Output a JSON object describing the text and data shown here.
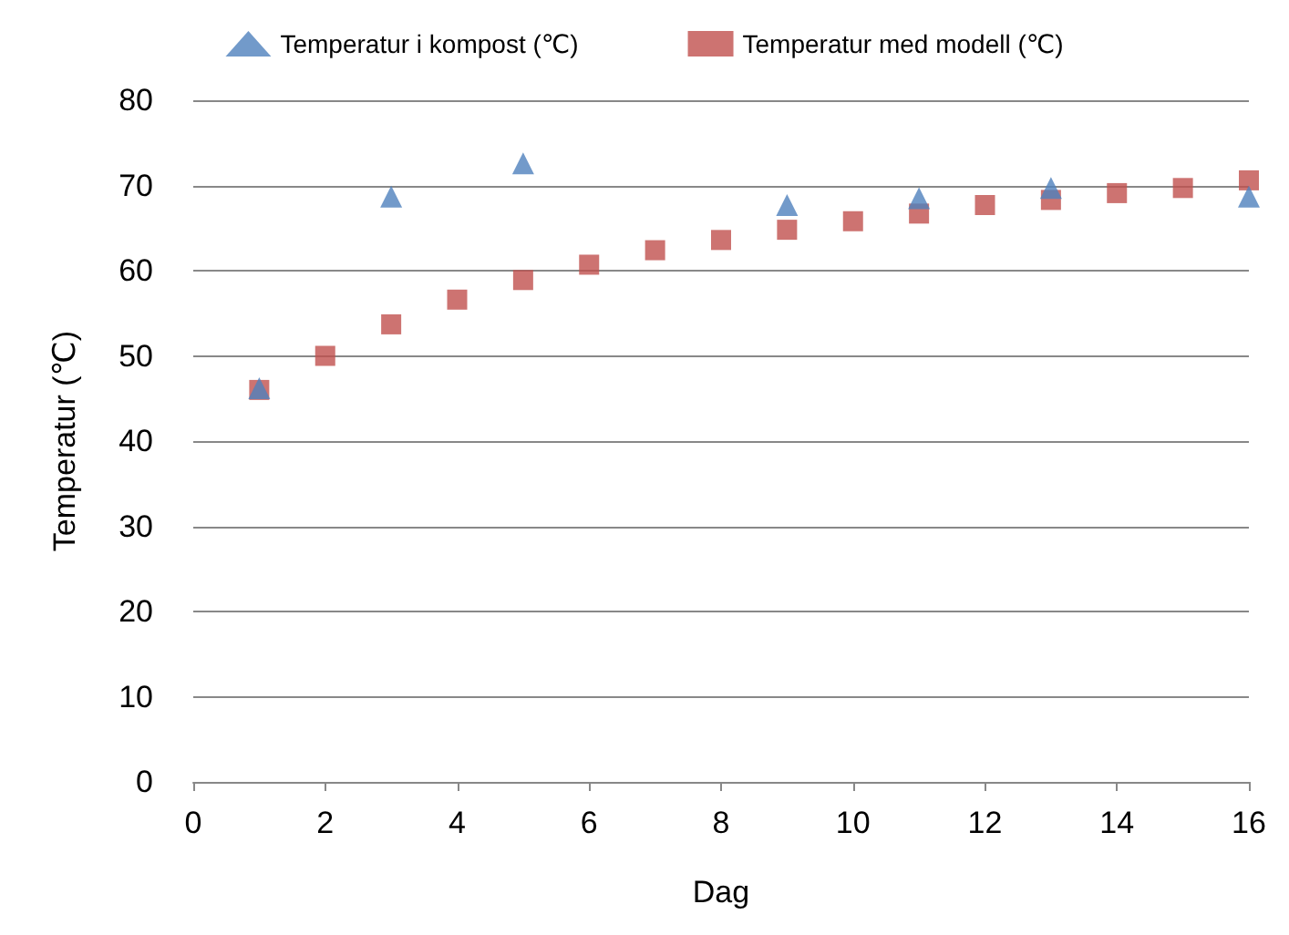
{
  "chart_data": {
    "type": "scatter",
    "xlabel": "Dag",
    "ylabel": "Temperatur (℃)",
    "xlim": [
      0,
      16
    ],
    "xticks": [
      0,
      2,
      4,
      6,
      8,
      10,
      12,
      14,
      16
    ],
    "ylim": [
      0,
      80
    ],
    "yticks": [
      0,
      10,
      20,
      30,
      40,
      50,
      60,
      70,
      80
    ],
    "grid": "y",
    "legend": "top",
    "series": [
      {
        "name": "Temperatur i kompost (℃)",
        "color": "#4f81bd",
        "marker": "triangle",
        "x": [
          1,
          3,
          5,
          9,
          11,
          13,
          16
        ],
        "values": [
          46.2,
          68.7,
          72.6,
          67.7,
          68.5,
          69.7,
          68.7
        ]
      },
      {
        "name": "Temperatur med modell (℃)",
        "color": "#c0504d",
        "marker": "square",
        "x": [
          1,
          2,
          3,
          4,
          5,
          6,
          7,
          8,
          9,
          10,
          11,
          12,
          13,
          14,
          15,
          16
        ],
        "values": [
          46,
          50,
          53.7,
          56.6,
          58.9,
          60.7,
          62.4,
          63.6,
          64.8,
          65.8,
          66.7,
          67.7,
          68.3,
          69.1,
          69.7,
          70.6
        ]
      }
    ]
  }
}
